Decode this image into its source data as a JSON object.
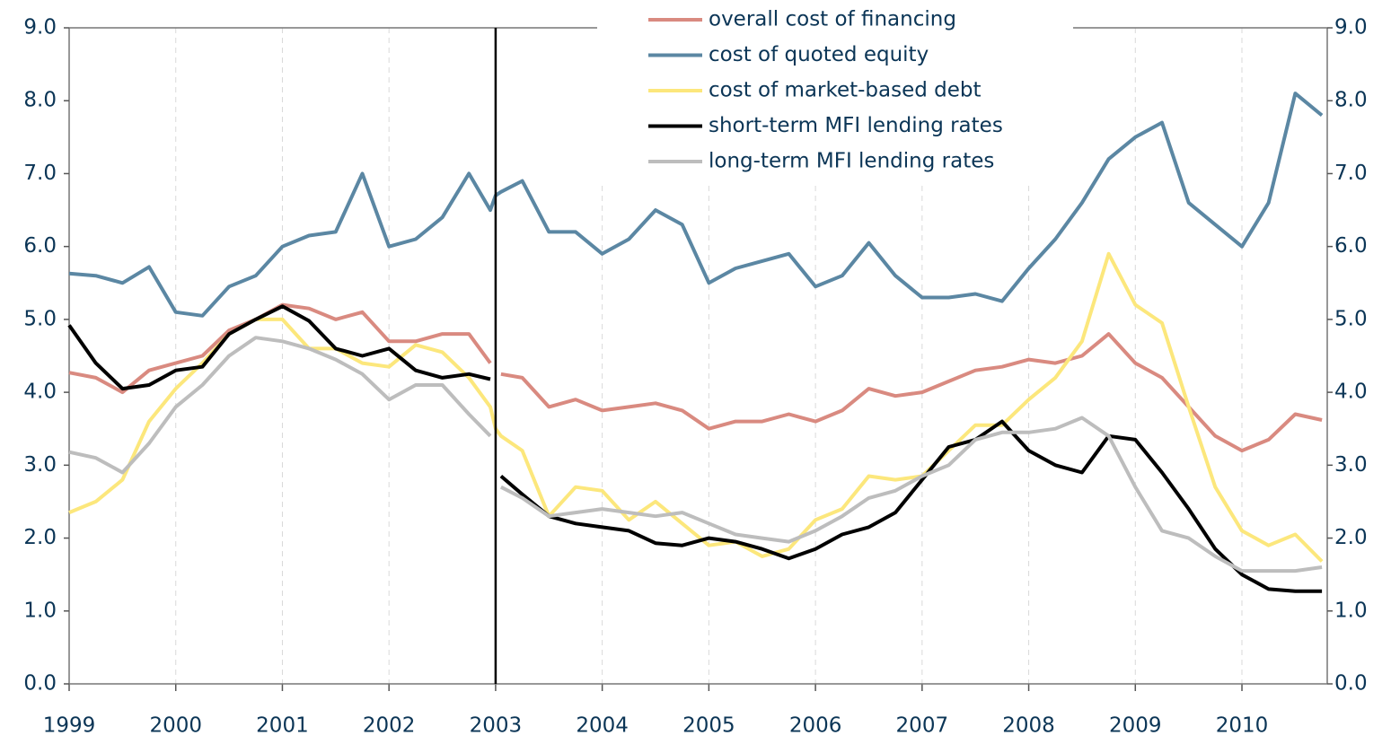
{
  "chart_data": {
    "type": "line",
    "x": [
      1999,
      1999.25,
      1999.5,
      1999.75,
      2000,
      2000.25,
      2000.5,
      2000.75,
      2001,
      2001.25,
      2001.5,
      2001.75,
      2002,
      2002.25,
      2002.5,
      2002.75,
      2002.95,
      2003,
      2003.05,
      2003.25,
      2003.5,
      2003.75,
      2004,
      2004.25,
      2004.5,
      2004.75,
      2005,
      2005.25,
      2005.5,
      2005.75,
      2006,
      2006.25,
      2006.5,
      2006.75,
      2007,
      2007.25,
      2007.5,
      2007.75,
      2008,
      2008.25,
      2008.5,
      2008.75,
      2009,
      2009.25,
      2009.5,
      2009.75,
      2010,
      2010.25,
      2010.5,
      2010.75
    ],
    "series": [
      {
        "name": "overall cost of financing",
        "color": "#d98a80",
        "values": [
          4.27,
          4.2,
          4.0,
          4.3,
          4.4,
          4.5,
          4.85,
          5.0,
          5.2,
          5.15,
          5.0,
          5.1,
          4.7,
          4.7,
          4.8,
          4.8,
          4.4,
          null,
          4.25,
          4.2,
          3.8,
          3.9,
          3.75,
          3.8,
          3.85,
          3.75,
          3.5,
          3.6,
          3.6,
          3.7,
          3.6,
          3.75,
          4.05,
          3.95,
          4.0,
          4.15,
          4.3,
          4.35,
          4.45,
          4.4,
          4.5,
          4.8,
          4.4,
          4.2,
          3.8,
          3.4,
          3.2,
          3.35,
          3.7,
          3.62
        ]
      },
      {
        "name": "cost of quoted equity",
        "color": "#5b87a3",
        "values": [
          5.63,
          5.6,
          5.5,
          5.72,
          5.1,
          5.05,
          5.45,
          5.6,
          6.0,
          6.15,
          6.2,
          7.0,
          6.0,
          6.1,
          6.4,
          7.0,
          6.5,
          6.7,
          6.75,
          6.9,
          6.2,
          6.2,
          5.9,
          6.1,
          6.5,
          6.3,
          5.5,
          5.7,
          5.8,
          5.9,
          5.45,
          5.6,
          6.05,
          5.6,
          5.3,
          5.3,
          5.35,
          5.25,
          5.7,
          6.1,
          6.6,
          7.2,
          7.5,
          7.7,
          6.6,
          6.3,
          6.0,
          6.6,
          8.1,
          7.8
        ]
      },
      {
        "name": "cost of market-based debt",
        "color": "#fce77c",
        "values": [
          2.35,
          2.5,
          2.8,
          3.6,
          4.05,
          4.4,
          4.8,
          5.0,
          5.0,
          4.6,
          4.6,
          4.4,
          4.35,
          4.65,
          4.55,
          4.2,
          3.8,
          3.5,
          3.4,
          3.2,
          2.3,
          2.7,
          2.65,
          2.25,
          2.5,
          2.2,
          1.9,
          1.95,
          1.75,
          1.85,
          2.25,
          2.4,
          2.85,
          2.8,
          2.85,
          3.2,
          3.55,
          3.55,
          3.9,
          4.2,
          4.7,
          5.9,
          5.2,
          4.95,
          3.8,
          2.7,
          2.1,
          1.9,
          2.05,
          1.68
        ]
      },
      {
        "name": "short-term MFI lending rates",
        "color": "#000000",
        "values": [
          4.92,
          4.4,
          4.05,
          4.1,
          4.3,
          4.35,
          4.8,
          5.0,
          5.18,
          4.98,
          4.6,
          4.5,
          4.6,
          4.3,
          4.2,
          4.25,
          4.18,
          null,
          2.85,
          2.6,
          2.3,
          2.2,
          2.15,
          2.1,
          1.93,
          1.9,
          2.0,
          1.95,
          1.85,
          1.72,
          1.85,
          2.05,
          2.15,
          2.35,
          2.8,
          3.25,
          3.35,
          3.6,
          3.2,
          3.0,
          2.9,
          3.4,
          3.35,
          2.9,
          2.4,
          1.85,
          1.5,
          1.3,
          1.27,
          1.27
        ]
      },
      {
        "name": "long-term MFI lending rates",
        "color": "#bdbdbd",
        "values": [
          3.18,
          3.1,
          2.9,
          3.3,
          3.8,
          4.1,
          4.5,
          4.75,
          4.7,
          4.6,
          4.45,
          4.25,
          3.9,
          4.1,
          4.1,
          3.7,
          3.4,
          null,
          2.7,
          2.55,
          2.3,
          2.35,
          2.4,
          2.35,
          2.3,
          2.35,
          2.2,
          2.05,
          2.0,
          1.95,
          2.1,
          2.3,
          2.55,
          2.65,
          2.85,
          3.0,
          3.35,
          3.45,
          3.45,
          3.5,
          3.65,
          3.4,
          2.7,
          2.1,
          2.0,
          1.75,
          1.55,
          1.55,
          1.55,
          1.6
        ]
      }
    ],
    "xlim": [
      1999,
      2010.8
    ],
    "xticks": [
      1999,
      2000,
      2001,
      2002,
      2003,
      2004,
      2005,
      2006,
      2007,
      2008,
      2009,
      2010
    ],
    "ylim": [
      0,
      9
    ],
    "yticks": [
      {
        "value": 0,
        "label": "0.0"
      },
      {
        "value": 1,
        "label": "1.0"
      },
      {
        "value": 2,
        "label": "2.0"
      },
      {
        "value": 3,
        "label": "3.0"
      },
      {
        "value": 4,
        "label": "4.0"
      },
      {
        "value": 5,
        "label": "5.0"
      },
      {
        "value": 6,
        "label": "6.0"
      },
      {
        "value": 7,
        "label": "7.0"
      },
      {
        "value": 8,
        "label": "8.0"
      },
      {
        "value": 9,
        "label": "9.0"
      }
    ],
    "y2lim": [
      0,
      9
    ],
    "y2ticks": [
      {
        "value": 0,
        "label": "0.0"
      },
      {
        "value": 1,
        "label": "1.0"
      },
      {
        "value": 2,
        "label": "2.0"
      },
      {
        "value": 3,
        "label": "3.0"
      },
      {
        "value": 4,
        "label": "4.0"
      },
      {
        "value": 5,
        "label": "5.0"
      },
      {
        "value": 6,
        "label": "6.0"
      },
      {
        "value": 7,
        "label": "7.0"
      },
      {
        "value": 8,
        "label": "8.0"
      },
      {
        "value": 9,
        "label": "9.0"
      }
    ],
    "vline": 2003,
    "grid": true,
    "legend": "top"
  }
}
